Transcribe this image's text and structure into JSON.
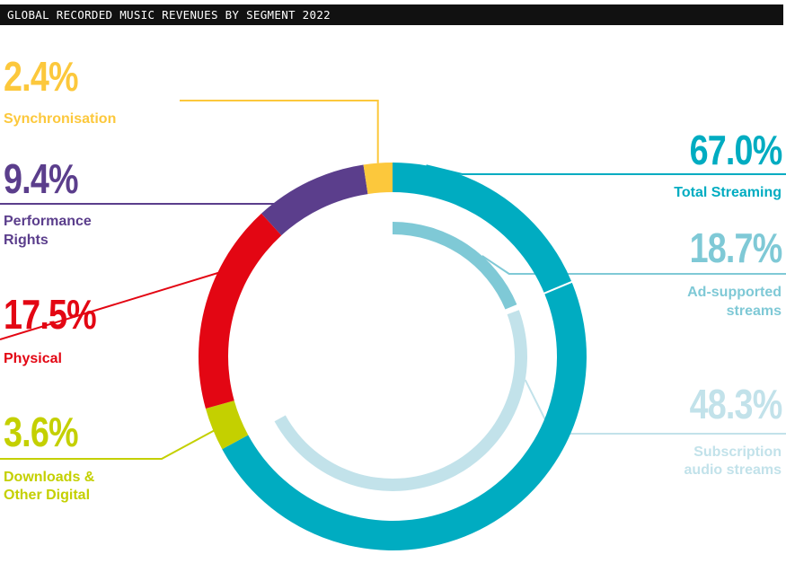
{
  "title": "GLOBAL RECORDED MUSIC REVENUES BY SEGMENT 2022",
  "chart_data": {
    "type": "donut",
    "title": "GLOBAL RECORDED MUSIC REVENUES BY SEGMENT 2022",
    "segments": [
      {
        "name": "Total Streaming",
        "value": 67.0,
        "label": "67.0%",
        "color": "#00acc1"
      },
      {
        "name": "Downloads & Other Digital",
        "value": 3.6,
        "label": "3.6%",
        "color": "#c4d000"
      },
      {
        "name": "Physical",
        "value": 17.5,
        "label": "17.5%",
        "color": "#e30613"
      },
      {
        "name": "Performance Rights",
        "value": 9.4,
        "label": "9.4%",
        "color": "#5b3e8c"
      },
      {
        "name": "Synchronisation",
        "value": 2.4,
        "label": "2.4%",
        "color": "#fcc83c"
      }
    ],
    "streaming_breakdown": [
      {
        "name": "Ad-supported streams",
        "value": 18.7,
        "label": "18.7%",
        "color": "#7fc9d6"
      },
      {
        "name": "Subscription audio streams",
        "value": 48.3,
        "label": "48.3%",
        "color": "#c2e2ea"
      }
    ]
  },
  "labels": {
    "sync": {
      "pct": "2.4%",
      "line1": "Synchronisation"
    },
    "performance": {
      "pct": "9.4%",
      "line1": "Performance",
      "line2": "Rights"
    },
    "physical": {
      "pct": "17.5%",
      "line1": "Physical"
    },
    "downloads": {
      "pct": "3.6%",
      "line1": "Downloads &",
      "line2": "Other Digital"
    },
    "streaming": {
      "pct": "67.0%",
      "line1": "Total Streaming"
    },
    "ad": {
      "pct": "18.7%",
      "line1": "Ad-supported",
      "line2": "streams"
    },
    "subscription": {
      "pct": "48.3%",
      "line1": "Subscription",
      "line2": "audio streams"
    }
  }
}
